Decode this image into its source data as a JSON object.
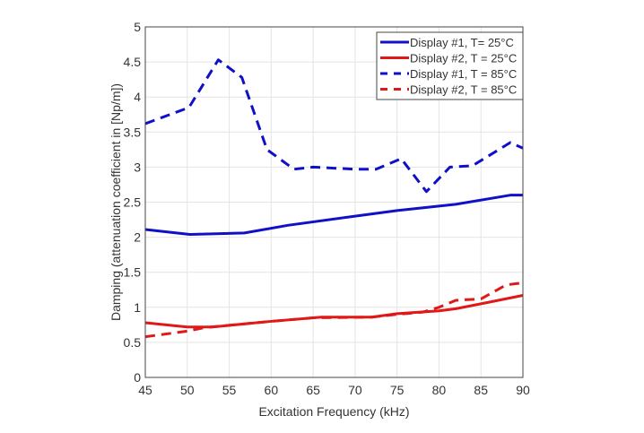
{
  "chart_data": {
    "type": "line",
    "title": "",
    "xlabel": "Excitation Frequency (kHz)",
    "ylabel": "Damping (attenuation coefficient in [Np/m])",
    "xlim": [
      45,
      90
    ],
    "ylim": [
      0,
      5
    ],
    "xticks": [
      45,
      50,
      55,
      60,
      65,
      70,
      75,
      80,
      85,
      90
    ],
    "yticks": [
      0,
      0.5,
      1,
      1.5,
      2,
      2.5,
      3,
      3.5,
      4,
      4.5,
      5
    ],
    "grid": true,
    "legend_position": "top-right",
    "series": [
      {
        "name": "Display #1, T= 25°C",
        "color": "#1010c8",
        "style": "solid",
        "x": [
          45,
          50.3,
          56.8,
          62,
          70,
          75,
          82,
          88.5,
          90
        ],
        "y": [
          2.11,
          2.04,
          2.06,
          2.17,
          2.3,
          2.38,
          2.47,
          2.6,
          2.6
        ]
      },
      {
        "name": "Display #2, T = 25°C",
        "color": "#e01818",
        "style": "solid",
        "x": [
          45,
          50,
          53,
          60,
          66,
          72,
          75,
          80,
          82,
          85,
          90
        ],
        "y": [
          0.78,
          0.72,
          0.72,
          0.8,
          0.86,
          0.86,
          0.91,
          0.95,
          0.98,
          1.05,
          1.17
        ]
      },
      {
        "name": "Display #1, T = 85°C",
        "color": "#1010c8",
        "style": "dashed",
        "x": [
          45,
          50.2,
          53.7,
          56.5,
          59.5,
          62.7,
          65,
          70,
          72.5,
          75.5,
          78.5,
          81.3,
          84,
          88.5,
          90
        ],
        "y": [
          3.62,
          3.85,
          4.53,
          4.28,
          3.25,
          2.97,
          3.0,
          2.97,
          2.97,
          3.12,
          2.65,
          3.0,
          3.02,
          3.35,
          3.27
        ]
      },
      {
        "name": "Display #2, T = 85°C",
        "color": "#e01818",
        "style": "dashed",
        "x": [
          45,
          50,
          52,
          60,
          65,
          72,
          75,
          78,
          80,
          82,
          85,
          88,
          90
        ],
        "y": [
          0.58,
          0.66,
          0.71,
          0.8,
          0.85,
          0.86,
          0.9,
          0.93,
          1.0,
          1.1,
          1.12,
          1.32,
          1.35
        ]
      }
    ]
  }
}
